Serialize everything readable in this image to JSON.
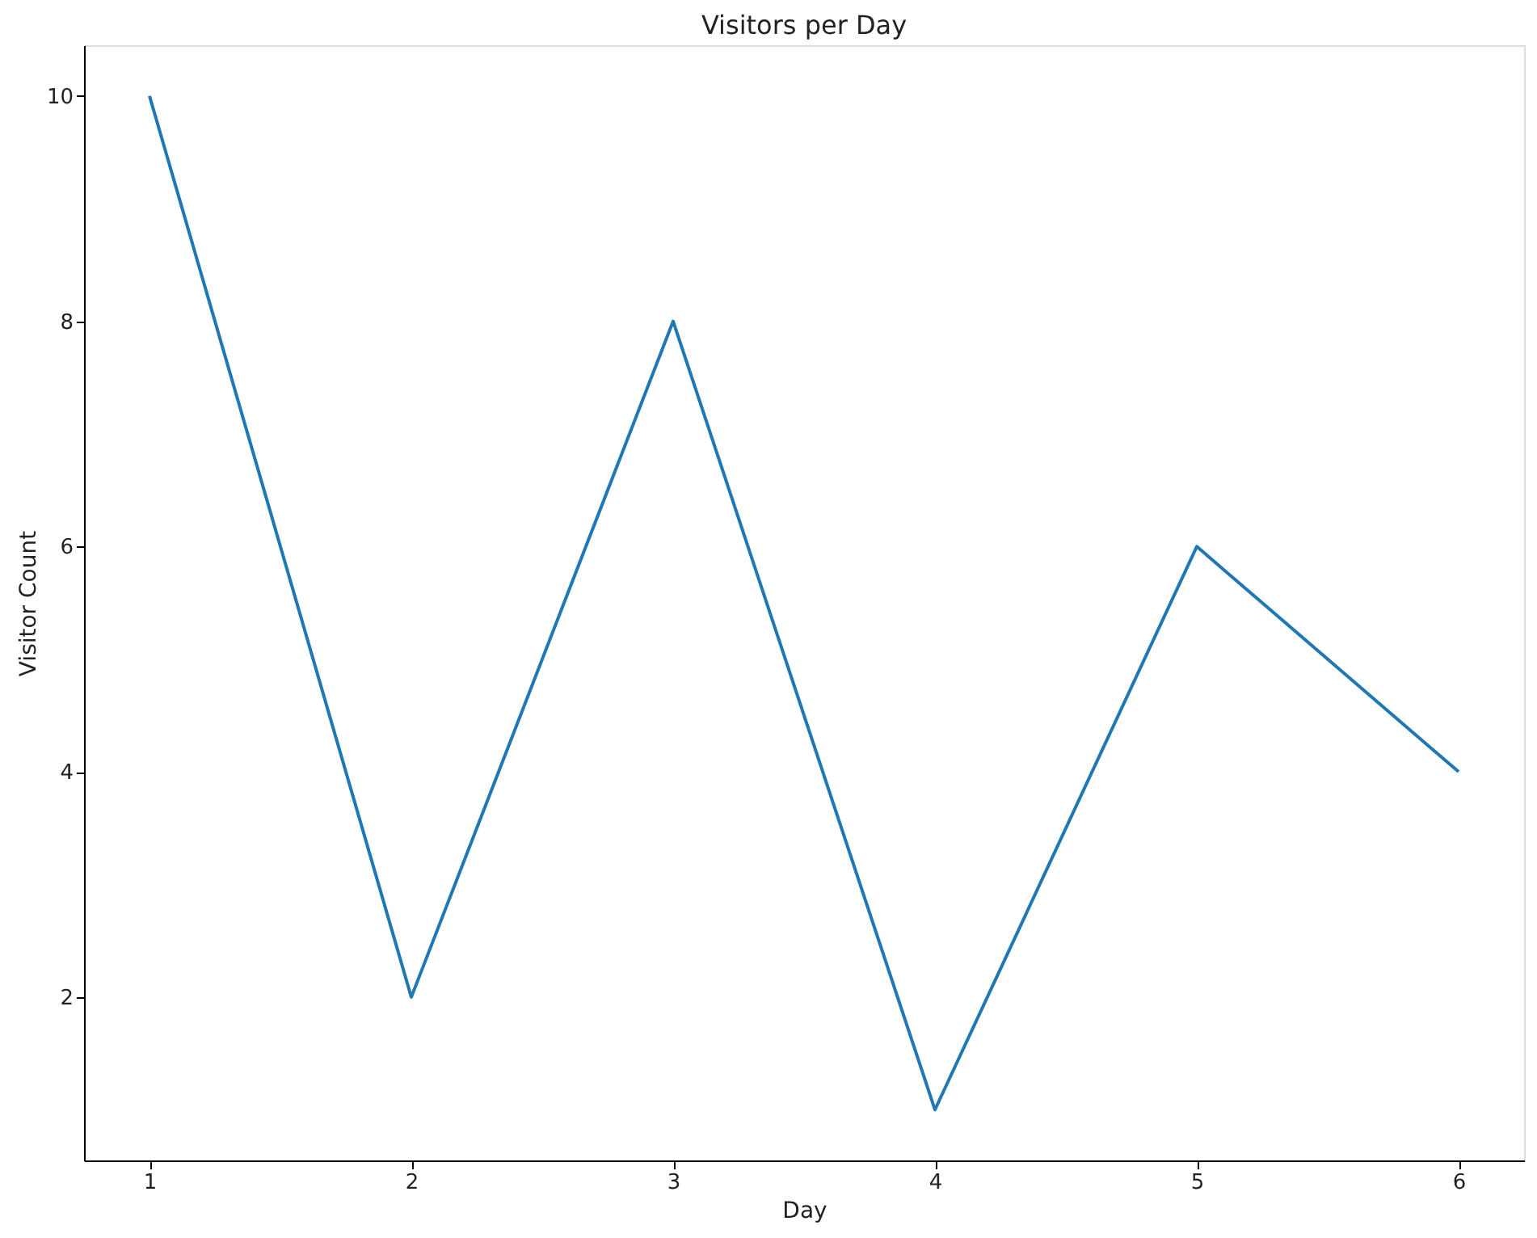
{
  "chart_data": {
    "type": "line",
    "title": "Visitors per Day",
    "xlabel": "Day",
    "ylabel": "Visitor Count",
    "x": [
      1,
      2,
      3,
      4,
      5,
      6
    ],
    "series": [
      {
        "color": "#1f77b4",
        "values": [
          10,
          2,
          8,
          1,
          6,
          4
        ]
      }
    ],
    "xlim": [
      0.75,
      6.25
    ],
    "xticks": [
      1,
      2,
      3,
      4,
      5,
      6
    ],
    "ylim": [
      0.55,
      10.45
    ],
    "yticks": [
      2,
      4,
      6,
      8,
      10
    ],
    "grid": false,
    "marker": "none",
    "line_style": "solid"
  }
}
